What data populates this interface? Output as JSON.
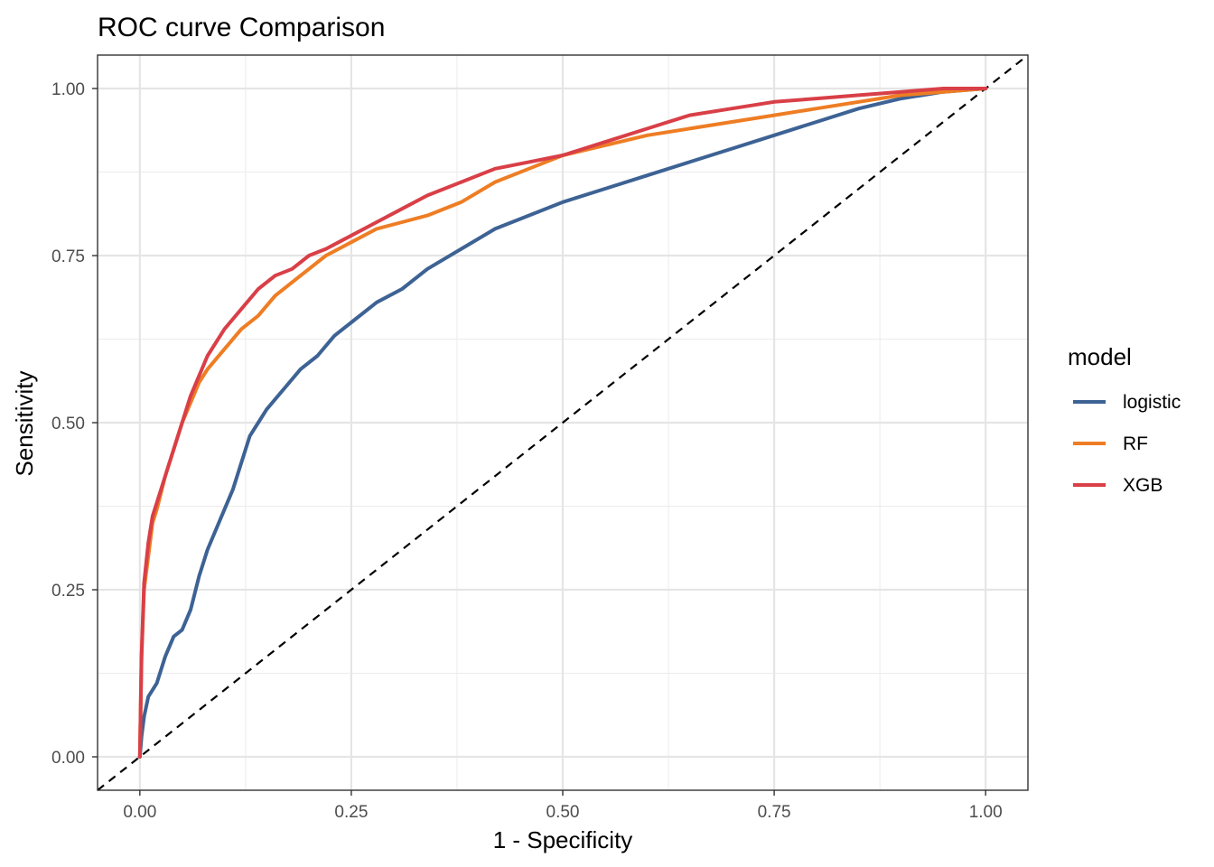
{
  "chart_data": {
    "type": "line",
    "title": "ROC curve Comparison",
    "xlabel": "1 - Specificity",
    "ylabel": "Sensitivity",
    "xlim": [
      -0.05,
      1.05
    ],
    "ylim": [
      -0.05,
      1.05
    ],
    "x_ticks": [
      "0.00",
      "0.25",
      "0.50",
      "0.75",
      "1.00"
    ],
    "y_ticks": [
      "0.00",
      "0.25",
      "0.50",
      "0.75",
      "1.00"
    ],
    "grid": true,
    "reference_line": {
      "type": "diagonal",
      "style": "dashed",
      "color": "#000000"
    },
    "legend": {
      "title": "model",
      "placement": "right"
    },
    "series": [
      {
        "name": "logistic",
        "color": "#3D6294",
        "points": [
          [
            0,
            0
          ],
          [
            0.002,
            0.03
          ],
          [
            0.005,
            0.06
          ],
          [
            0.01,
            0.09
          ],
          [
            0.02,
            0.11
          ],
          [
            0.03,
            0.15
          ],
          [
            0.04,
            0.18
          ],
          [
            0.05,
            0.19
          ],
          [
            0.06,
            0.22
          ],
          [
            0.07,
            0.27
          ],
          [
            0.08,
            0.31
          ],
          [
            0.09,
            0.34
          ],
          [
            0.1,
            0.37
          ],
          [
            0.11,
            0.4
          ],
          [
            0.12,
            0.44
          ],
          [
            0.13,
            0.48
          ],
          [
            0.14,
            0.5
          ],
          [
            0.15,
            0.52
          ],
          [
            0.17,
            0.55
          ],
          [
            0.19,
            0.58
          ],
          [
            0.21,
            0.6
          ],
          [
            0.23,
            0.63
          ],
          [
            0.25,
            0.65
          ],
          [
            0.28,
            0.68
          ],
          [
            0.31,
            0.7
          ],
          [
            0.34,
            0.73
          ],
          [
            0.38,
            0.76
          ],
          [
            0.42,
            0.79
          ],
          [
            0.46,
            0.81
          ],
          [
            0.5,
            0.83
          ],
          [
            0.55,
            0.85
          ],
          [
            0.6,
            0.87
          ],
          [
            0.65,
            0.89
          ],
          [
            0.7,
            0.91
          ],
          [
            0.75,
            0.93
          ],
          [
            0.8,
            0.95
          ],
          [
            0.85,
            0.97
          ],
          [
            0.9,
            0.985
          ],
          [
            0.95,
            0.995
          ],
          [
            1,
            1
          ]
        ]
      },
      {
        "name": "RF",
        "color": "#EE7D24",
        "points": [
          [
            0,
            0
          ],
          [
            0.002,
            0.15
          ],
          [
            0.005,
            0.25
          ],
          [
            0.01,
            0.3
          ],
          [
            0.015,
            0.35
          ],
          [
            0.02,
            0.37
          ],
          [
            0.03,
            0.42
          ],
          [
            0.04,
            0.46
          ],
          [
            0.05,
            0.5
          ],
          [
            0.06,
            0.53
          ],
          [
            0.07,
            0.56
          ],
          [
            0.08,
            0.58
          ],
          [
            0.1,
            0.61
          ],
          [
            0.12,
            0.64
          ],
          [
            0.14,
            0.66
          ],
          [
            0.16,
            0.69
          ],
          [
            0.18,
            0.71
          ],
          [
            0.2,
            0.73
          ],
          [
            0.22,
            0.75
          ],
          [
            0.25,
            0.77
          ],
          [
            0.28,
            0.79
          ],
          [
            0.31,
            0.8
          ],
          [
            0.34,
            0.81
          ],
          [
            0.38,
            0.83
          ],
          [
            0.42,
            0.86
          ],
          [
            0.46,
            0.88
          ],
          [
            0.5,
            0.9
          ],
          [
            0.55,
            0.915
          ],
          [
            0.6,
            0.93
          ],
          [
            0.65,
            0.94
          ],
          [
            0.7,
            0.95
          ],
          [
            0.75,
            0.96
          ],
          [
            0.8,
            0.97
          ],
          [
            0.85,
            0.98
          ],
          [
            0.9,
            0.99
          ],
          [
            0.95,
            0.995
          ],
          [
            1,
            1
          ]
        ]
      },
      {
        "name": "XGB",
        "color": "#D93F47",
        "points": [
          [
            0,
            0
          ],
          [
            0.002,
            0.15
          ],
          [
            0.005,
            0.26
          ],
          [
            0.01,
            0.32
          ],
          [
            0.015,
            0.36
          ],
          [
            0.02,
            0.38
          ],
          [
            0.03,
            0.42
          ],
          [
            0.04,
            0.46
          ],
          [
            0.05,
            0.5
          ],
          [
            0.06,
            0.54
          ],
          [
            0.07,
            0.57
          ],
          [
            0.08,
            0.6
          ],
          [
            0.1,
            0.64
          ],
          [
            0.12,
            0.67
          ],
          [
            0.14,
            0.7
          ],
          [
            0.16,
            0.72
          ],
          [
            0.18,
            0.73
          ],
          [
            0.2,
            0.75
          ],
          [
            0.22,
            0.76
          ],
          [
            0.25,
            0.78
          ],
          [
            0.28,
            0.8
          ],
          [
            0.31,
            0.82
          ],
          [
            0.34,
            0.84
          ],
          [
            0.38,
            0.86
          ],
          [
            0.42,
            0.88
          ],
          [
            0.46,
            0.89
          ],
          [
            0.5,
            0.9
          ],
          [
            0.55,
            0.92
          ],
          [
            0.6,
            0.94
          ],
          [
            0.65,
            0.96
          ],
          [
            0.7,
            0.97
          ],
          [
            0.75,
            0.98
          ],
          [
            0.8,
            0.985
          ],
          [
            0.85,
            0.99
          ],
          [
            0.9,
            0.995
          ],
          [
            0.95,
            1
          ],
          [
            1,
            1
          ]
        ]
      }
    ]
  }
}
